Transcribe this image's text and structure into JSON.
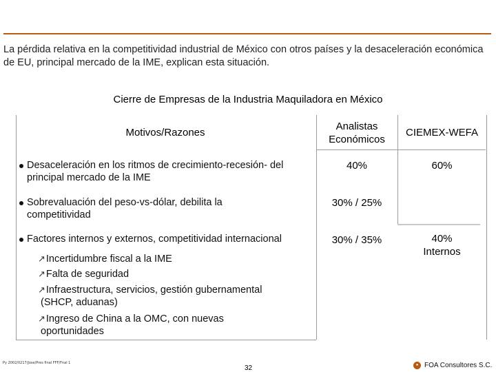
{
  "intro": "La pérdida relativa en la competitividad industrial de México con otros países y la desaceleración económica de EU, principal mercado de la IME, explican esta situación.",
  "title": "Cierre de Empresas de la Industria Maquiladora en México",
  "headers": {
    "motivos": "Motivos/Razones",
    "analistas_line1": "Analistas",
    "analistas_line2": "Económicos",
    "ciemex": "CIEMEX-WEFA"
  },
  "rows": [
    {
      "line1": "Desaceleración en los ritmos de crecimiento-recesión- del",
      "line2": "principal mercado de la IME",
      "analistas": "40%",
      "ciemex": "60%"
    },
    {
      "line1": "Sobrevaluación del peso-vs-dólar, debilita la",
      "line2": "competitividad",
      "analistas": "30% / 25%",
      "ciemex": ""
    },
    {
      "line1": "Factores internos y externos, competitividad internacional",
      "analistas": "30% / 35%",
      "ciemex_line1": "40%",
      "ciemex_line2": "Internos",
      "subitems": [
        {
          "line1": "Incertidumbre fiscal a la IME"
        },
        {
          "line1": "Falta de seguridad"
        },
        {
          "line1": "Infraestructura, servicios, gestión gubernamental",
          "line2": "(SHCP, aduanas)"
        },
        {
          "line1": "Ingreso de China a la OMC, con nuevas",
          "line2": "oportunidades"
        }
      ]
    }
  ],
  "footer": {
    "path": "Py 2002/0217/Jose/Pres final FFF/Fnal 1",
    "page": "32",
    "company": "FOA Consultores S.C."
  }
}
